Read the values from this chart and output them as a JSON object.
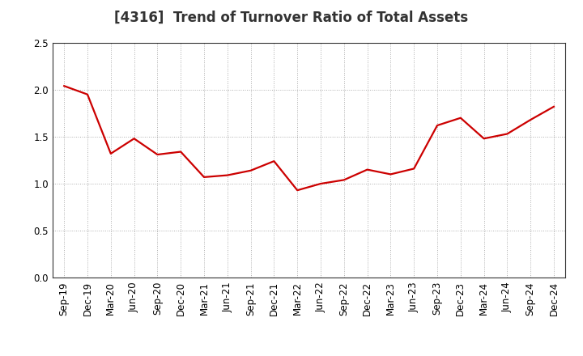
{
  "title": "[4316]  Trend of Turnover Ratio of Total Assets",
  "x_labels": [
    "Sep-19",
    "Dec-19",
    "Mar-20",
    "Jun-20",
    "Sep-20",
    "Dec-20",
    "Mar-21",
    "Jun-21",
    "Sep-21",
    "Dec-21",
    "Mar-22",
    "Jun-22",
    "Sep-22",
    "Dec-22",
    "Mar-23",
    "Jun-23",
    "Sep-23",
    "Dec-23",
    "Mar-24",
    "Jun-24",
    "Sep-24",
    "Dec-24"
  ],
  "y_values": [
    2.04,
    1.95,
    1.32,
    1.48,
    1.31,
    1.34,
    1.07,
    1.09,
    1.14,
    1.24,
    0.93,
    1.0,
    1.04,
    1.15,
    1.1,
    1.16,
    1.62,
    1.7,
    1.48,
    1.53,
    1.68,
    1.82
  ],
  "line_color": "#cc0000",
  "line_width": 1.6,
  "ylim": [
    0.0,
    2.5
  ],
  "yticks": [
    0.0,
    0.5,
    1.0,
    1.5,
    2.0,
    2.5
  ],
  "grid_color": "#999999",
  "background_color": "#ffffff",
  "title_fontsize": 12,
  "tick_fontsize": 8.5
}
